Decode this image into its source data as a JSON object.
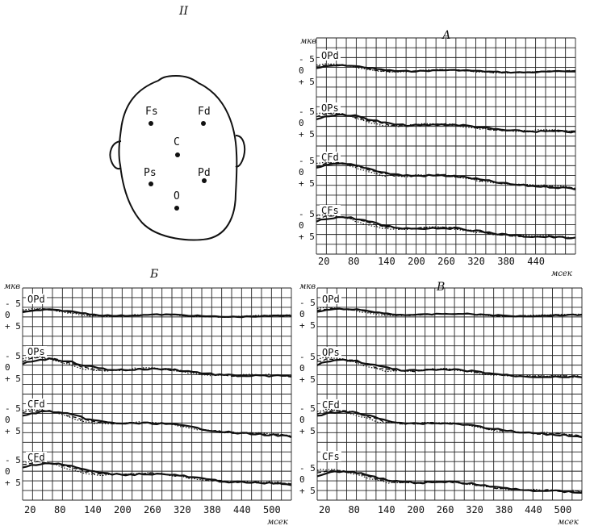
{
  "figure_number": "II",
  "head": {
    "electrodes": [
      {
        "label": "Fs"
      },
      {
        "label": "Fd"
      },
      {
        "label": "C"
      },
      {
        "label": "Ps"
      },
      {
        "label": "Pd"
      },
      {
        "label": "O"
      }
    ]
  },
  "panels": [
    {
      "letter": "А",
      "unit": "мкв",
      "x_unit": "мсек",
      "x_ticks": [
        "20",
        "80",
        "140",
        "200",
        "260",
        "320",
        "380",
        "440"
      ],
      "y_ticks": [
        "- 5",
        "0",
        "+ 5"
      ],
      "leads": [
        "OPd",
        "OPs",
        "CFd",
        "CFs"
      ]
    },
    {
      "letter": "Б",
      "unit": "мкв",
      "x_unit": "мсек",
      "x_ticks": [
        "20",
        "80",
        "140",
        "200",
        "260",
        "320",
        "380",
        "440",
        "500"
      ],
      "y_ticks": [
        "- 5",
        "0",
        "+ 5"
      ],
      "leads": [
        "OPd",
        "OPs",
        "CFd",
        "CFd"
      ]
    },
    {
      "letter": "В",
      "unit": "мкв",
      "x_unit": "мсек",
      "x_ticks": [
        "20",
        "80",
        "140",
        "200",
        "260",
        "320",
        "380",
        "440",
        "500"
      ],
      "y_ticks": [
        "- 5",
        "0",
        "+ 5"
      ],
      "leads": [
        "OPd",
        "OPs",
        "CFd",
        "CFs"
      ]
    }
  ]
}
